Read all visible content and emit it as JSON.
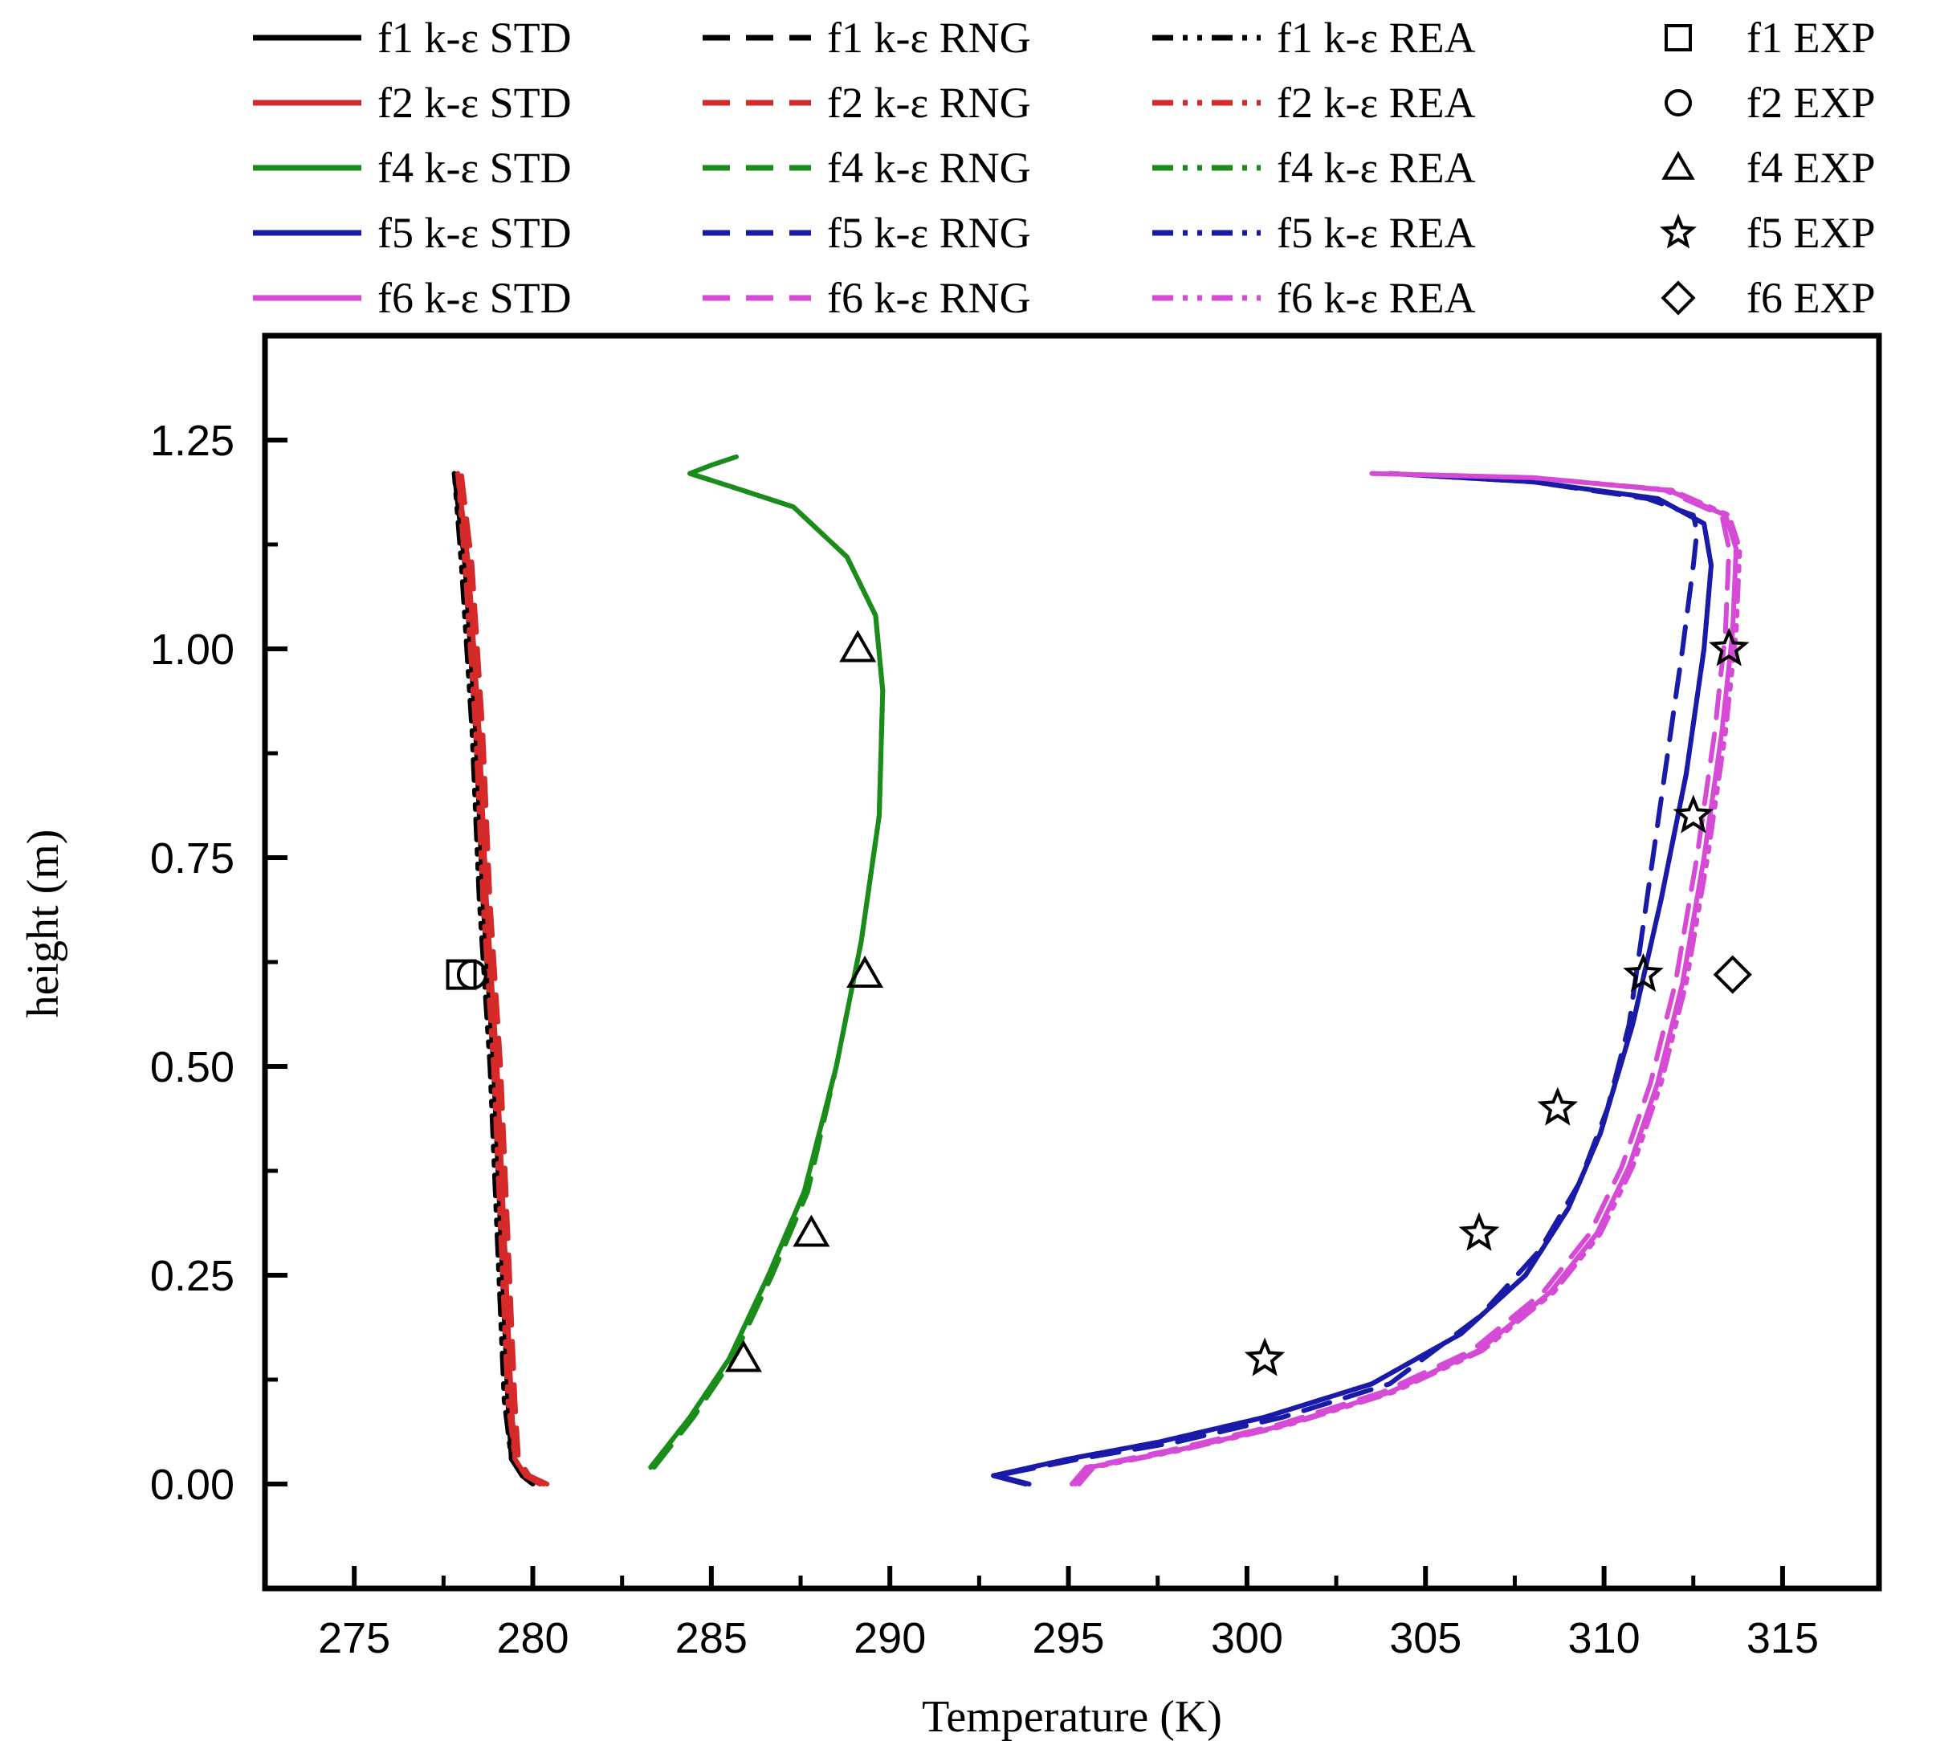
{
  "chart_data": {
    "type": "line",
    "xlabel": "Temperature (K)",
    "ylabel": "height (m)",
    "xlim": [
      272.5,
      317.7
    ],
    "ylim": [
      -0.125,
      1.375
    ],
    "xticks": [
      275,
      280,
      285,
      290,
      295,
      300,
      305,
      310,
      315
    ],
    "xtick_labels": [
      "275",
      "280",
      "285",
      "290",
      "295",
      "300",
      "305",
      "310",
      "315"
    ],
    "yticks": [
      0.0,
      0.25,
      0.5,
      0.75,
      1.0,
      1.25
    ],
    "ytick_labels": [
      "0.00",
      "0.25",
      "0.50",
      "0.75",
      "1.00",
      "1.25"
    ],
    "grid": false,
    "legend_position": "top",
    "colors": {
      "f1": "#000000",
      "f2": "#d62a2a",
      "f4": "#1a8c1a",
      "f5": "#1a1aa8",
      "f6": "#d64bd6"
    },
    "legend": [
      {
        "label": "f1 k-ε STD",
        "group": "f1",
        "style": "solid"
      },
      {
        "label": "f1 k-ε RNG",
        "group": "f1",
        "style": "dash"
      },
      {
        "label": "f1 k-ε REA",
        "group": "f1",
        "style": "dashdot"
      },
      {
        "label": "f1 EXP",
        "group": "f1",
        "style": "marker",
        "marker": "square"
      },
      {
        "label": "f2 k-ε STD",
        "group": "f2",
        "style": "solid"
      },
      {
        "label": "f2 k-ε RNG",
        "group": "f2",
        "style": "dash"
      },
      {
        "label": "f2 k-ε REA",
        "group": "f2",
        "style": "dashdot"
      },
      {
        "label": "f2 EXP",
        "group": "f2",
        "style": "marker",
        "marker": "circle"
      },
      {
        "label": "f4 k-ε STD",
        "group": "f4",
        "style": "solid"
      },
      {
        "label": "f4 k-ε RNG",
        "group": "f4",
        "style": "dash"
      },
      {
        "label": "f4 k-ε REA",
        "group": "f4",
        "style": "dashdot"
      },
      {
        "label": "f4 EXP",
        "group": "f4",
        "style": "marker",
        "marker": "triangle"
      },
      {
        "label": "f5 k-ε STD",
        "group": "f5",
        "style": "solid"
      },
      {
        "label": "f5 k-ε RNG",
        "group": "f5",
        "style": "dash"
      },
      {
        "label": "f5 k-ε REA",
        "group": "f5",
        "style": "dashdot"
      },
      {
        "label": "f5 EXP",
        "group": "f5",
        "style": "marker",
        "marker": "star"
      },
      {
        "label": "f6 k-ε  STD",
        "group": "f6",
        "style": "solid"
      },
      {
        "label": "f6 k-ε RNG",
        "group": "f6",
        "style": "dash"
      },
      {
        "label": "f6 k-ε REA",
        "group": "f6",
        "style": "dashdot"
      },
      {
        "label": "f6 EXP",
        "group": "f6",
        "style": "marker",
        "marker": "diamond"
      }
    ],
    "series": [
      {
        "name": "f1 k-ε STD",
        "group": "f1",
        "style": "solid",
        "x": [
          280.0,
          279.7,
          279.4,
          279.3,
          279.1,
          278.9,
          278.6,
          278.4,
          278.1,
          277.8
        ],
        "y": [
          0.0,
          0.01,
          0.03,
          0.1,
          0.3,
          0.5,
          0.7,
          0.9,
          1.1,
          1.21
        ]
      },
      {
        "name": "f1 k-ε RNG",
        "group": "f1",
        "style": "dash",
        "x": [
          280.2,
          279.8,
          279.5,
          279.4,
          279.2,
          279.0,
          278.7,
          278.5,
          278.2,
          277.9
        ],
        "y": [
          0.0,
          0.01,
          0.03,
          0.1,
          0.3,
          0.5,
          0.7,
          0.9,
          1.1,
          1.21
        ]
      },
      {
        "name": "f1 k-ε REA",
        "group": "f1",
        "style": "dashdot",
        "x": [
          280.0,
          279.7,
          279.4,
          279.2,
          279.0,
          278.8,
          278.5,
          278.3,
          278.0,
          277.8
        ],
        "y": [
          0.0,
          0.01,
          0.03,
          0.1,
          0.3,
          0.5,
          0.7,
          0.9,
          1.1,
          1.21
        ]
      },
      {
        "name": "f2 k-ε STD",
        "group": "f2",
        "style": "solid",
        "x": [
          280.3,
          279.8,
          279.5,
          279.4,
          279.2,
          279.0,
          278.7,
          278.5,
          278.2,
          277.9
        ],
        "y": [
          0.0,
          0.01,
          0.03,
          0.1,
          0.3,
          0.5,
          0.7,
          0.9,
          1.1,
          1.21
        ]
      },
      {
        "name": "f2 k-ε RNG",
        "group": "f2",
        "style": "dash",
        "x": [
          280.4,
          279.9,
          279.6,
          279.5,
          279.3,
          279.1,
          278.8,
          278.6,
          278.3,
          278.0
        ],
        "y": [
          0.0,
          0.01,
          0.03,
          0.1,
          0.3,
          0.5,
          0.7,
          0.9,
          1.1,
          1.21
        ]
      },
      {
        "name": "f2 k-ε REA",
        "group": "f2",
        "style": "dashdot",
        "x": [
          280.2,
          279.8,
          279.5,
          279.3,
          279.1,
          278.9,
          278.6,
          278.4,
          278.1,
          277.9
        ],
        "y": [
          0.0,
          0.01,
          0.03,
          0.1,
          0.3,
          0.5,
          0.7,
          0.9,
          1.1,
          1.21
        ]
      },
      {
        "name": "f4 k-ε STD",
        "group": "f4",
        "style": "solid",
        "x": [
          283.3,
          284.4,
          285.5,
          286.6,
          287.6,
          288.5,
          289.2,
          289.7,
          289.8,
          289.6,
          288.8,
          287.3,
          285.5,
          284.4,
          285.0,
          285.7
        ],
        "y": [
          0.02,
          0.08,
          0.15,
          0.25,
          0.35,
          0.5,
          0.65,
          0.8,
          0.95,
          1.04,
          1.11,
          1.17,
          1.195,
          1.21,
          1.22,
          1.23
        ]
      },
      {
        "name": "f4 k-ε RNG",
        "group": "f4",
        "style": "dash",
        "x": [
          283.4,
          284.5,
          285.6,
          286.7,
          287.7,
          288.5,
          289.2,
          289.7,
          289.8,
          289.6,
          288.8,
          287.3,
          285.5,
          284.4
        ],
        "y": [
          0.02,
          0.08,
          0.15,
          0.25,
          0.35,
          0.5,
          0.65,
          0.8,
          0.95,
          1.04,
          1.11,
          1.17,
          1.195,
          1.21
        ]
      },
      {
        "name": "f4 k-ε REA",
        "group": "f4",
        "style": "dashdot",
        "x": [
          283.3,
          284.4,
          285.5,
          286.6,
          287.6,
          288.5,
          289.2,
          289.7,
          289.8,
          289.6,
          288.8,
          287.3,
          285.5,
          284.4
        ],
        "y": [
          0.02,
          0.08,
          0.15,
          0.25,
          0.35,
          0.5,
          0.65,
          0.8,
          0.95,
          1.04,
          1.11,
          1.17,
          1.195,
          1.21
        ]
      },
      {
        "name": "f5 k-ε STD",
        "group": "f5",
        "style": "solid",
        "x": [
          293.8,
          292.9,
          295.0,
          297.5,
          300.5,
          303.5,
          306.0,
          307.8,
          309.0,
          309.9,
          310.8,
          311.6,
          312.3,
          312.8,
          313.0,
          312.8,
          311.5,
          308.0,
          304.0
        ],
        "y": [
          0.0,
          0.01,
          0.03,
          0.05,
          0.08,
          0.12,
          0.18,
          0.25,
          0.33,
          0.42,
          0.55,
          0.7,
          0.85,
          1.0,
          1.1,
          1.15,
          1.18,
          1.2,
          1.21
        ]
      },
      {
        "name": "f5 k-ε RNG",
        "group": "f5",
        "style": "dash",
        "x": [
          293.9,
          293.0,
          295.3,
          298.0,
          301.0,
          304.0,
          306.5,
          308.2,
          309.3,
          310.1,
          310.7,
          311.2,
          311.7,
          312.2,
          312.5,
          312.6,
          312.5,
          311.2,
          308.0
        ],
        "y": [
          0.0,
          0.01,
          0.03,
          0.05,
          0.08,
          0.12,
          0.2,
          0.28,
          0.36,
          0.45,
          0.55,
          0.7,
          0.85,
          1.0,
          1.1,
          1.14,
          1.16,
          1.18,
          1.2
        ]
      },
      {
        "name": "f5 k-ε REA",
        "group": "f5",
        "style": "dashdot",
        "x": [
          293.8,
          292.9,
          295.0,
          297.5,
          300.5,
          303.5,
          306.0,
          307.8,
          309.0,
          309.9,
          310.8,
          311.6,
          312.3,
          312.8,
          313.0,
          312.8,
          311.5,
          308.0,
          304.0
        ],
        "y": [
          0.0,
          0.01,
          0.03,
          0.05,
          0.08,
          0.12,
          0.18,
          0.25,
          0.33,
          0.42,
          0.55,
          0.7,
          0.85,
          1.0,
          1.1,
          1.15,
          1.18,
          1.2,
          1.21
        ]
      },
      {
        "name": "f6 k-ε  STD",
        "group": "f6",
        "style": "solid",
        "x": [
          295.2,
          295.6,
          298.0,
          301.0,
          304.0,
          306.5,
          308.5,
          309.8,
          310.7,
          311.5,
          312.2,
          312.8,
          313.3,
          313.6,
          313.7,
          313.4,
          311.8,
          308.0,
          303.5
        ],
        "y": [
          0.0,
          0.02,
          0.04,
          0.07,
          0.11,
          0.16,
          0.23,
          0.3,
          0.38,
          0.48,
          0.6,
          0.75,
          0.9,
          1.02,
          1.12,
          1.16,
          1.19,
          1.205,
          1.21
        ]
      },
      {
        "name": "f6 k-ε RNG",
        "group": "f6",
        "style": "dash",
        "x": [
          295.1,
          295.5,
          297.8,
          300.8,
          303.8,
          306.3,
          308.3,
          309.6,
          310.5,
          311.3,
          312.0,
          312.6,
          313.1,
          313.4,
          313.5,
          313.3,
          311.7,
          308.0
        ],
        "y": [
          0.0,
          0.02,
          0.04,
          0.07,
          0.11,
          0.16,
          0.23,
          0.3,
          0.38,
          0.48,
          0.6,
          0.75,
          0.9,
          1.02,
          1.12,
          1.16,
          1.19,
          1.205
        ]
      },
      {
        "name": "f6 k-ε REA",
        "group": "f6",
        "style": "dashdot",
        "x": [
          295.3,
          295.7,
          298.1,
          301.1,
          304.1,
          306.6,
          308.6,
          309.9,
          310.8,
          311.6,
          312.3,
          312.9,
          313.4,
          313.7,
          313.8,
          313.5,
          311.9,
          308.0,
          303.5
        ],
        "y": [
          0.0,
          0.02,
          0.04,
          0.07,
          0.11,
          0.16,
          0.23,
          0.3,
          0.38,
          0.48,
          0.6,
          0.75,
          0.9,
          1.02,
          1.12,
          1.16,
          1.19,
          1.205,
          1.21
        ]
      }
    ],
    "experimental": [
      {
        "name": "f1 EXP",
        "group": "f1",
        "marker": "square",
        "points": [
          {
            "x": 278.0,
            "y": 0.61
          }
        ]
      },
      {
        "name": "f2 EXP",
        "group": "f2",
        "marker": "circle",
        "points": [
          {
            "x": 278.3,
            "y": 0.61
          }
        ]
      },
      {
        "name": "f4 EXP",
        "group": "f4",
        "marker": "triangle",
        "points": [
          {
            "x": 285.9,
            "y": 0.15
          },
          {
            "x": 287.8,
            "y": 0.3
          },
          {
            "x": 289.3,
            "y": 0.61
          },
          {
            "x": 289.1,
            "y": 1.0
          }
        ]
      },
      {
        "name": "f5 EXP",
        "group": "f5",
        "marker": "star",
        "points": [
          {
            "x": 300.5,
            "y": 0.15
          },
          {
            "x": 306.5,
            "y": 0.3
          },
          {
            "x": 308.7,
            "y": 0.45
          },
          {
            "x": 311.1,
            "y": 0.61
          },
          {
            "x": 312.5,
            "y": 0.8
          },
          {
            "x": 313.5,
            "y": 1.0
          }
        ]
      },
      {
        "name": "f6 EXP",
        "group": "f6",
        "marker": "diamond",
        "points": [
          {
            "x": 313.6,
            "y": 0.61
          }
        ]
      }
    ]
  }
}
